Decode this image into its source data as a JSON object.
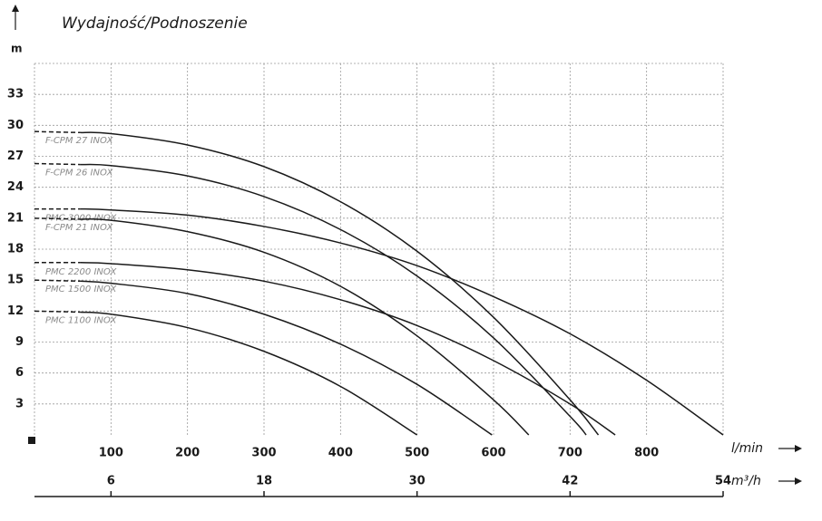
{
  "chart_data": {
    "type": "line",
    "title": "Wydajność/Podnoszenie",
    "y_label": "m",
    "x_label": "l/min",
    "x2_label": "m³/h",
    "xlim": [
      0,
      900
    ],
    "xticks": [
      100,
      200,
      300,
      400,
      500,
      600,
      700,
      800
    ],
    "x2lim": [
      0,
      54
    ],
    "x2ticks": [
      6,
      18,
      30,
      42,
      54
    ],
    "ylim": [
      0,
      36
    ],
    "yticks": [
      3,
      6,
      9,
      12,
      15,
      18,
      21,
      24,
      27,
      30,
      33
    ],
    "grid": true,
    "series": [
      {
        "name": "F-CPM 27 INOX",
        "color": "#1a1a1a",
        "x": [
          0,
          60,
          100,
          200,
          300,
          400,
          500,
          600,
          700,
          737
        ],
        "values": [
          29.4,
          29.3,
          29.2,
          28.1,
          26.0,
          22.6,
          17.8,
          11.4,
          3.4,
          0
        ]
      },
      {
        "name": "F-CPM 26 INOX",
        "color": "#1a1a1a",
        "x": [
          0,
          60,
          100,
          200,
          300,
          400,
          500,
          600,
          700,
          721
        ],
        "values": [
          26.3,
          26.2,
          26.1,
          25.1,
          23.1,
          19.9,
          15.4,
          9.4,
          1.8,
          0
        ]
      },
      {
        "name": "PMC 3000 INOX",
        "color": "#1a1a1a",
        "x": [
          0,
          60,
          100,
          200,
          300,
          400,
          500,
          600,
          700,
          800,
          900
        ],
        "values": [
          21.9,
          21.9,
          21.8,
          21.3,
          20.2,
          18.6,
          16.4,
          13.4,
          9.8,
          5.3,
          0
        ]
      },
      {
        "name": "F-CPM 21 INOX",
        "color": "#1a1a1a",
        "x": [
          0,
          60,
          100,
          200,
          300,
          400,
          500,
          600,
          646
        ],
        "values": [
          21.0,
          20.9,
          20.8,
          19.7,
          17.7,
          14.4,
          9.6,
          3.4,
          0
        ]
      },
      {
        "name": "PMC 2200 INOX",
        "color": "#1a1a1a",
        "x": [
          0,
          60,
          100,
          200,
          300,
          400,
          500,
          600,
          700,
          759
        ],
        "values": [
          16.7,
          16.7,
          16.6,
          16.0,
          14.9,
          13.1,
          10.6,
          7.2,
          3.0,
          0
        ]
      },
      {
        "name": "PMC 1500 INOX",
        "color": "#1a1a1a",
        "x": [
          0,
          60,
          100,
          200,
          300,
          400,
          500,
          598
        ],
        "values": [
          15.0,
          14.9,
          14.7,
          13.7,
          11.7,
          8.8,
          4.9,
          0
        ]
      },
      {
        "name": "PMC 1100 INOX",
        "color": "#1a1a1a",
        "x": [
          0,
          60,
          100,
          200,
          300,
          400,
          500
        ],
        "values": [
          12.0,
          11.9,
          11.7,
          10.4,
          8.1,
          4.7,
          0
        ]
      }
    ]
  }
}
